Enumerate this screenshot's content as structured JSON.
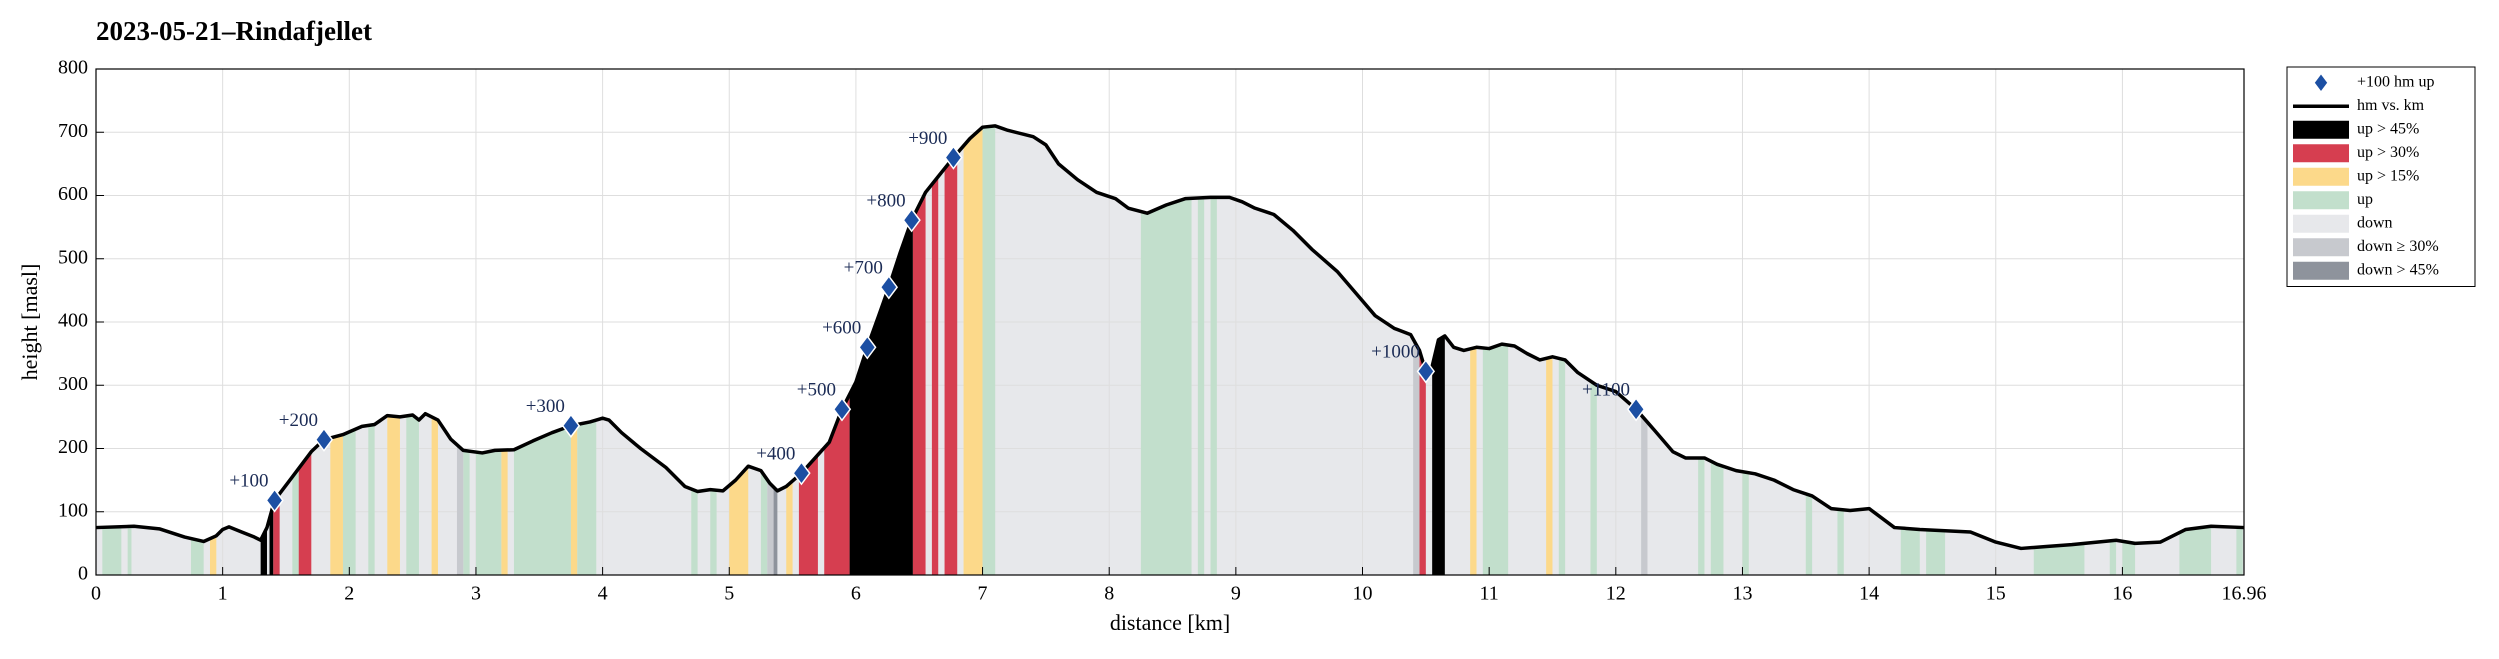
{
  "chart_data": {
    "type": "line",
    "title": "2023-05-21–Rindafjellet",
    "xlabel": "distance [km]",
    "ylabel": "height [masl]",
    "xlim": [
      0,
      16.96
    ],
    "ylim": [
      0,
      800
    ],
    "xticks": [
      0,
      1,
      2,
      3,
      4,
      5,
      6,
      7,
      8,
      9,
      10,
      11,
      12,
      13,
      14,
      15,
      16,
      16.96
    ],
    "yticks": [
      0,
      100,
      200,
      300,
      400,
      500,
      600,
      700,
      800
    ],
    "grid": true,
    "legend": "outside right",
    "series": [
      {
        "name": "+100 hm up",
        "type": "scatter",
        "color": "#1c4fa3",
        "x": [
          1.41,
          1.8,
          3.75,
          5.57,
          5.89,
          6.09,
          6.26,
          6.44,
          6.77,
          10.5,
          12.16
        ],
        "values": [
          118,
          214,
          236,
          161,
          262,
          360,
          455,
          561,
          660,
          322,
          262
        ],
        "labels": [
          "+100",
          "+200",
          "+300",
          "+400",
          "+500",
          "+600",
          "+700",
          "+800",
          "+900",
          "+1000",
          "+1100"
        ]
      },
      {
        "name": "hm vs. km",
        "type": "line",
        "color": "#000000",
        "x": [
          0,
          0.3,
          0.5,
          0.7,
          0.85,
          0.95,
          1.0,
          1.05,
          1.15,
          1.25,
          1.3,
          1.35,
          1.41,
          1.55,
          1.7,
          1.8,
          1.95,
          2.1,
          2.2,
          2.3,
          2.4,
          2.5,
          2.55,
          2.6,
          2.7,
          2.8,
          2.9,
          3.05,
          3.15,
          3.3,
          3.45,
          3.6,
          3.75,
          3.9,
          4.0,
          4.05,
          4.15,
          4.3,
          4.5,
          4.65,
          4.75,
          4.85,
          4.95,
          5.05,
          5.15,
          5.25,
          5.32,
          5.38,
          5.45,
          5.57,
          5.7,
          5.79,
          5.89,
          6.0,
          6.09,
          6.18,
          6.26,
          6.35,
          6.44,
          6.55,
          6.65,
          6.77,
          6.9,
          7.0,
          7.1,
          7.2,
          7.4,
          7.5,
          7.6,
          7.75,
          7.9,
          8.05,
          8.15,
          8.3,
          8.45,
          8.6,
          8.8,
          8.95,
          9.05,
          9.15,
          9.3,
          9.45,
          9.6,
          9.8,
          9.95,
          10.1,
          10.25,
          10.38,
          10.45,
          10.5,
          10.55,
          10.6,
          10.65,
          10.72,
          10.8,
          10.9,
          11.0,
          11.1,
          11.2,
          11.3,
          11.4,
          11.5,
          11.6,
          11.7,
          11.85,
          12.0,
          12.16,
          12.3,
          12.45,
          12.55,
          12.7,
          12.8,
          12.95,
          13.1,
          13.25,
          13.4,
          13.55,
          13.7,
          13.85,
          14.0,
          14.1,
          14.2,
          14.4,
          14.6,
          14.8,
          15.0,
          15.2,
          15.4,
          15.6,
          15.8,
          15.95,
          16.1,
          16.3,
          16.5,
          16.7,
          16.96
        ],
        "values": [
          75,
          77,
          73,
          60,
          53,
          62,
          72,
          76,
          68,
          60,
          55,
          75,
          118,
          155,
          195,
          214,
          222,
          235,
          238,
          252,
          250,
          253,
          245,
          255,
          245,
          215,
          197,
          193,
          197,
          198,
          212,
          225,
          236,
          242,
          248,
          245,
          225,
          200,
          170,
          140,
          132,
          135,
          133,
          150,
          172,
          165,
          145,
          133,
          140,
          161,
          190,
          210,
          262,
          305,
          360,
          410,
          455,
          510,
          561,
          605,
          630,
          660,
          690,
          708,
          710,
          703,
          693,
          680,
          650,
          625,
          605,
          595,
          580,
          572,
          585,
          595,
          597,
          597,
          590,
          580,
          570,
          545,
          515,
          480,
          445,
          410,
          390,
          380,
          355,
          322,
          330,
          372,
          378,
          360,
          355,
          360,
          358,
          365,
          362,
          350,
          340,
          345,
          340,
          320,
          300,
          290,
          262,
          230,
          195,
          185,
          185,
          175,
          165,
          160,
          150,
          135,
          125,
          105,
          102,
          105,
          90,
          75,
          72,
          70,
          68,
          52,
          42,
          45,
          48,
          52,
          55,
          50,
          52,
          72,
          77,
          75
        ]
      }
    ],
    "bands": [
      {
        "name": "up > 45%",
        "color": "#000000",
        "intervals": [
          [
            1.3,
            1.35
          ],
          [
            1.37,
            1.4
          ],
          [
            5.95,
            6.45
          ],
          [
            10.55,
            10.65
          ]
        ]
      },
      {
        "name": "up > 30%",
        "color": "#d63e50",
        "intervals": [
          [
            1.4,
            1.45
          ],
          [
            1.6,
            1.7
          ],
          [
            5.55,
            5.7
          ],
          [
            5.75,
            5.95
          ],
          [
            6.45,
            6.55
          ],
          [
            6.6,
            6.65
          ],
          [
            6.7,
            6.8
          ],
          [
            10.45,
            10.5
          ]
        ]
      },
      {
        "name": "up > 15%",
        "color": "#fcd98a",
        "intervals": [
          [
            0.9,
            0.95
          ],
          [
            1.85,
            1.95
          ],
          [
            2.3,
            2.4
          ],
          [
            2.65,
            2.7
          ],
          [
            3.2,
            3.25
          ],
          [
            3.75,
            3.8
          ],
          [
            5.0,
            5.15
          ],
          [
            5.45,
            5.5
          ],
          [
            6.85,
            7.0
          ],
          [
            10.85,
            10.9
          ],
          [
            11.45,
            11.5
          ]
        ]
      },
      {
        "name": "up",
        "color": "#c2dfcc",
        "intervals": [
          [
            0.05,
            0.2
          ],
          [
            0.25,
            0.28
          ],
          [
            0.75,
            0.85
          ],
          [
            1.55,
            1.6
          ],
          [
            1.95,
            2.05
          ],
          [
            2.15,
            2.2
          ],
          [
            2.45,
            2.55
          ],
          [
            2.9,
            2.95
          ],
          [
            3.0,
            3.2
          ],
          [
            3.3,
            3.75
          ],
          [
            3.8,
            3.95
          ],
          [
            4.7,
            4.75
          ],
          [
            4.85,
            4.9
          ],
          [
            5.25,
            5.3
          ],
          [
            7.0,
            7.1
          ],
          [
            8.25,
            8.65
          ],
          [
            8.7,
            8.75
          ],
          [
            8.8,
            8.85
          ],
          [
            10.95,
            11.15
          ],
          [
            11.55,
            11.6
          ],
          [
            11.8,
            11.85
          ],
          [
            12.65,
            12.7
          ],
          [
            12.75,
            12.85
          ],
          [
            13.0,
            13.05
          ],
          [
            13.5,
            13.55
          ],
          [
            13.75,
            13.8
          ],
          [
            14.25,
            14.4
          ],
          [
            14.45,
            14.6
          ],
          [
            15.3,
            15.7
          ],
          [
            15.9,
            15.95
          ],
          [
            16.0,
            16.1
          ],
          [
            16.45,
            16.7
          ],
          [
            16.9,
            16.95
          ]
        ]
      },
      {
        "name": "down",
        "color": "#e7e8eb"
      },
      {
        "name": "down ≥ 30%",
        "color": "#c7c9ce",
        "intervals": [
          [
            2.85,
            2.9
          ],
          [
            5.3,
            5.35
          ],
          [
            10.4,
            10.45
          ],
          [
            12.2,
            12.25
          ]
        ]
      },
      {
        "name": "down > 45%",
        "color": "#8e939c",
        "intervals": [
          [
            5.35,
            5.38
          ]
        ]
      }
    ]
  }
}
